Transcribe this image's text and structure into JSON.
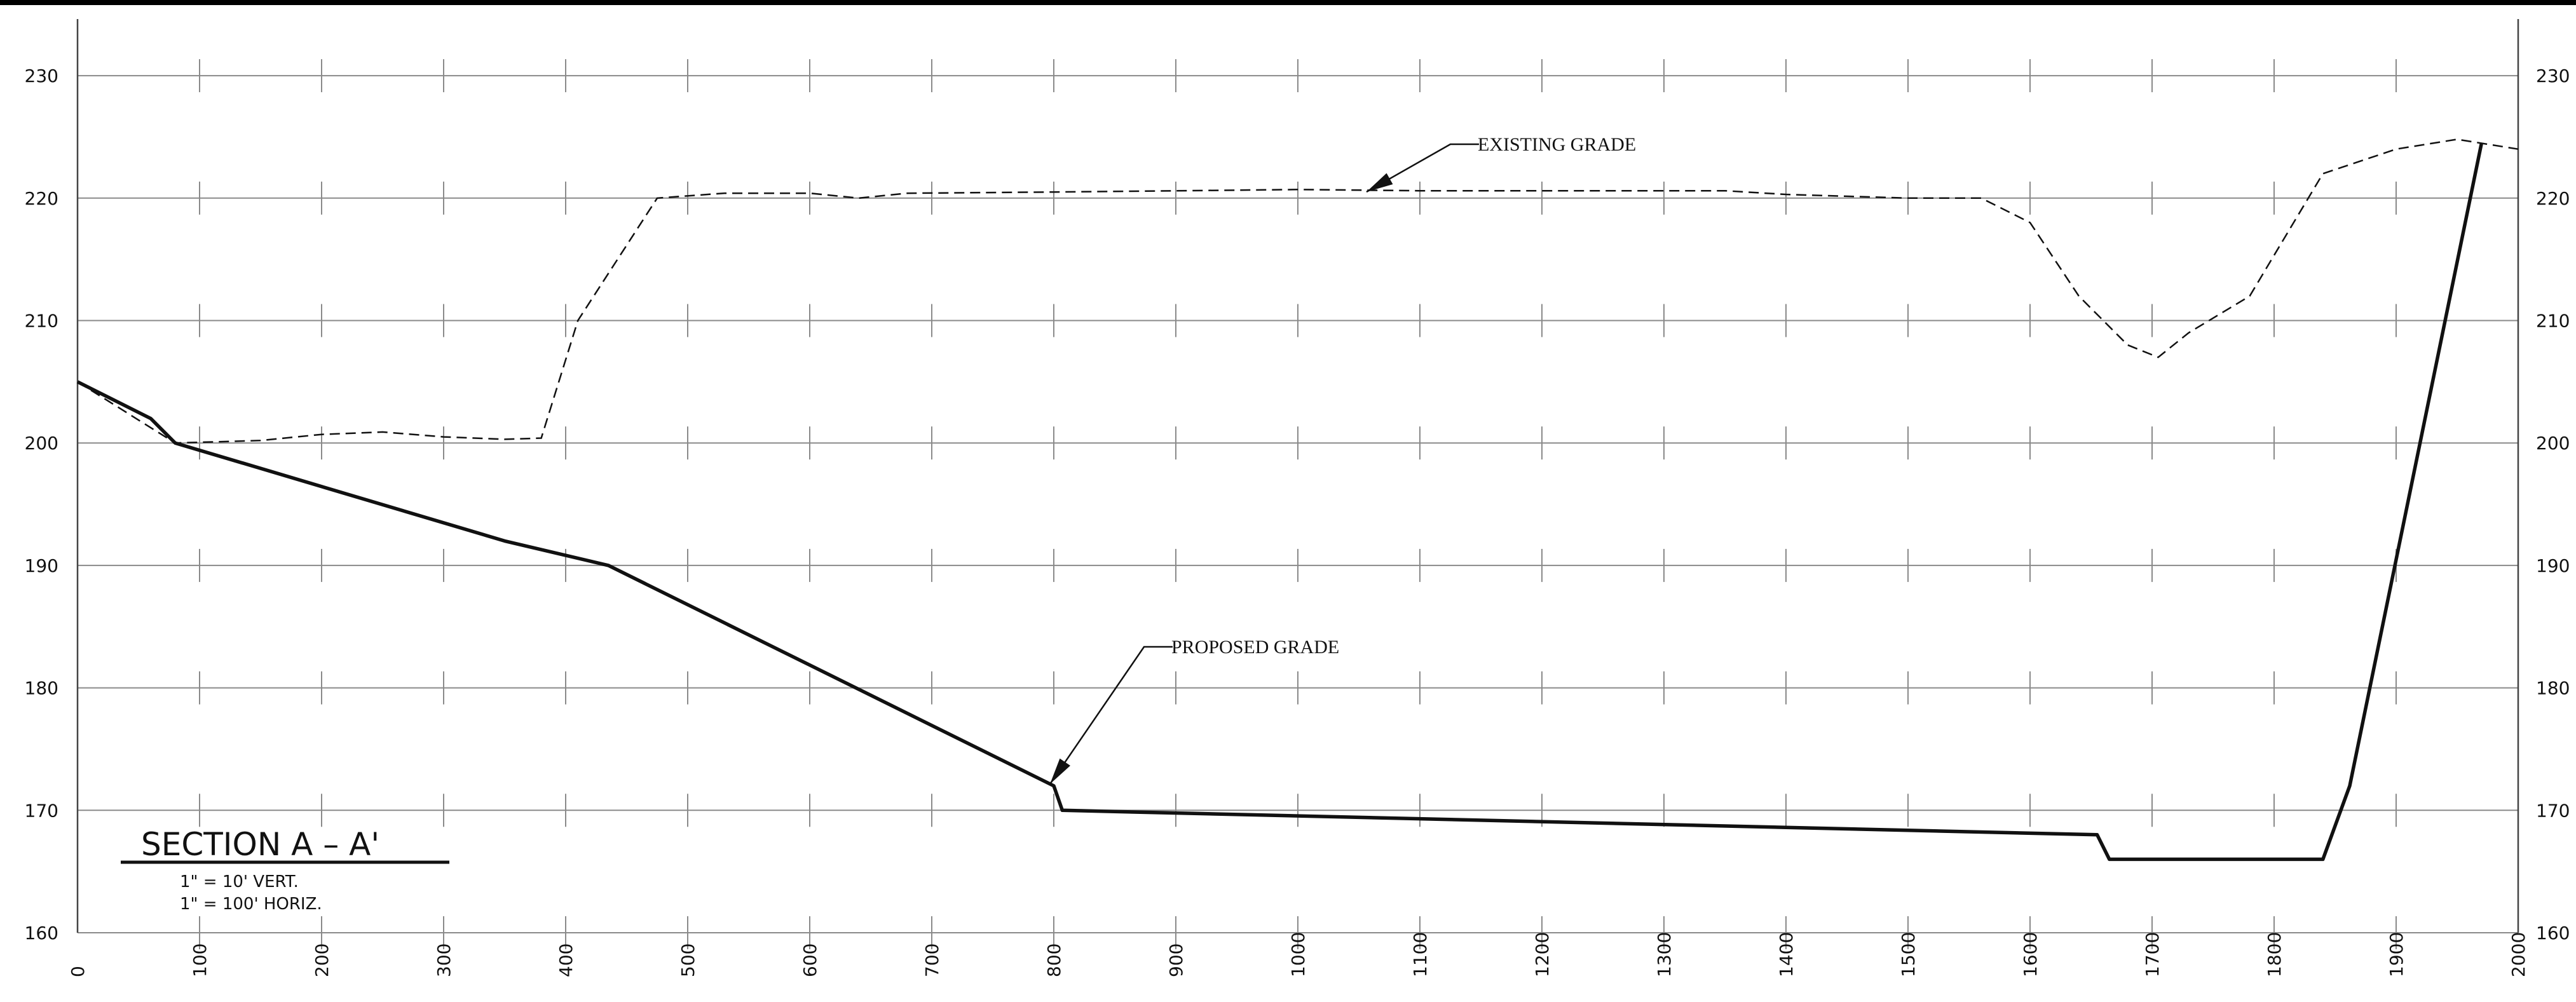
{
  "chart_data": {
    "type": "line",
    "title": "SECTION A – A'",
    "scale_vert": "1\" = 10' VERT.",
    "scale_horiz": "1\" = 100' HORIZ.",
    "xlim": [
      0,
      2000
    ],
    "ylim": [
      160,
      232
    ],
    "grid": true,
    "x_ticks": [
      "0",
      "100",
      "200",
      "300",
      "400",
      "500",
      "600",
      "700",
      "800",
      "900",
      "1000",
      "1100",
      "1200",
      "1300",
      "1400",
      "1500",
      "1600",
      "1700",
      "1800",
      "1900",
      "2000"
    ],
    "y_ticks": [
      "160",
      "170",
      "180",
      "190",
      "200",
      "210",
      "220",
      "230"
    ],
    "series": [
      {
        "name": "EXISTING GRADE",
        "style": "dashed",
        "x": [
          0,
          80,
          150,
          200,
          250,
          300,
          350,
          380,
          410,
          475,
          530,
          600,
          640,
          680,
          800,
          1000,
          1100,
          1200,
          1350,
          1400,
          1500,
          1560,
          1600,
          1640,
          1680,
          1705,
          1730,
          1780,
          1810,
          1840,
          1900,
          1950,
          2000
        ],
        "y": [
          205,
          200,
          200.2,
          200.7,
          200.9,
          200.5,
          200.3,
          200.4,
          210,
          220,
          220.4,
          220.4,
          220,
          220.4,
          220.5,
          220.7,
          220.6,
          220.6,
          220.6,
          220.3,
          220,
          220,
          218,
          212,
          208,
          207,
          209,
          212,
          217,
          222,
          224,
          224.8,
          224
        ],
        "callout": "EXISTING GRADE"
      },
      {
        "name": "PROPOSED GRADE",
        "style": "solid",
        "x": [
          0,
          60,
          80,
          350,
          435,
          800,
          807,
          1655,
          1665,
          1840,
          1862,
          1970
        ],
        "y": [
          205,
          202,
          200,
          192,
          190,
          172,
          170,
          168,
          166,
          166,
          172,
          224.5
        ],
        "callout": "PROPOSED GRADE"
      }
    ]
  }
}
